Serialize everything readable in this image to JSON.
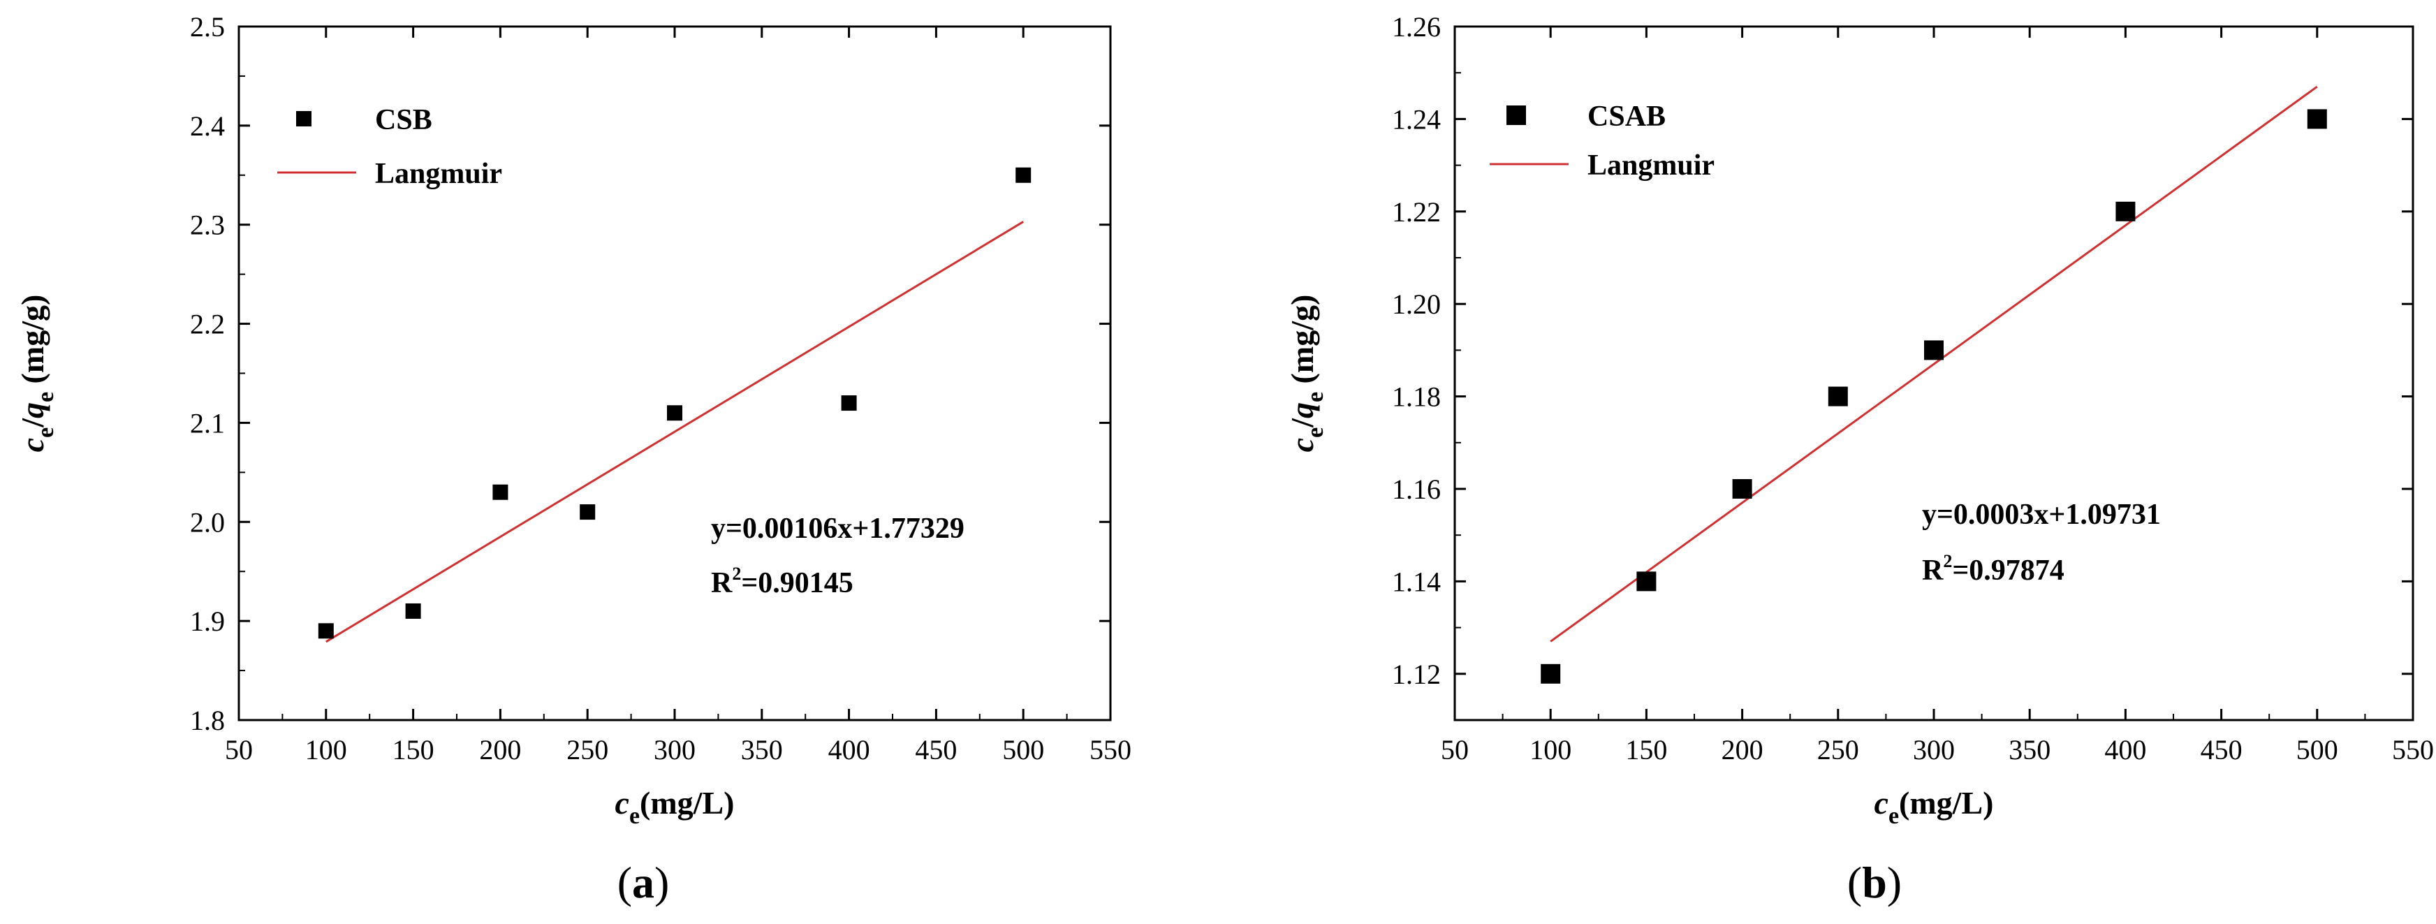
{
  "chart_data": [
    {
      "type": "scatter",
      "panel_label": {
        "open": "(",
        "letter": "a",
        "close": ")"
      },
      "xlabel": {
        "main": "c",
        "sub": "e",
        "rest": "(mg/L)"
      },
      "ylabel": {
        "c": "c",
        "e1": "e",
        "slash": "/",
        "q": "q",
        "e2": "e",
        "rest": " (mg/g)"
      },
      "xlim": [
        50,
        550
      ],
      "ylim": [
        1.8,
        2.5
      ],
      "xticks": [
        50,
        100,
        150,
        200,
        250,
        300,
        350,
        400,
        450,
        500,
        550
      ],
      "xtick_labels": [
        "50",
        "100",
        "150",
        "200",
        "250",
        "300",
        "350",
        "400",
        "450",
        "500",
        "550"
      ],
      "yticks": [
        1.8,
        1.9,
        2.0,
        2.1,
        2.2,
        2.3,
        2.4,
        2.5
      ],
      "ytick_labels": [
        "1.8",
        "1.9",
        "2.0",
        "2.1",
        "2.2",
        "2.3",
        "2.4",
        "2.5"
      ],
      "series": [
        {
          "name": "CSB",
          "kind": "points",
          "x": [
            100,
            150,
            200,
            250,
            300,
            400,
            500
          ],
          "y": [
            1.89,
            1.91,
            2.03,
            2.01,
            2.11,
            2.12,
            2.35
          ]
        },
        {
          "name": "Langmuir",
          "kind": "line",
          "x": [
            100,
            500
          ],
          "y": [
            1.879,
            2.303
          ]
        }
      ],
      "annotations": {
        "equation": "y=0.00106x+1.77329",
        "r2_prefix": "R",
        "r2_sup": "2",
        "r2_value": "=0.90145"
      },
      "legend_position": "top-left",
      "colors": {
        "points": "#000000",
        "line": "#d03030"
      }
    },
    {
      "type": "scatter",
      "panel_label": {
        "open": "(",
        "letter": "b",
        "close": ")"
      },
      "xlabel": {
        "main": "c",
        "sub": "e",
        "rest": "(mg/L)"
      },
      "ylabel": {
        "c": "c",
        "e1": "e",
        "slash": "/",
        "q": "q",
        "e2": "e",
        "rest": " (mg/g)"
      },
      "xlim": [
        50,
        550
      ],
      "ylim": [
        1.11,
        1.26
      ],
      "xticks": [
        50,
        100,
        150,
        200,
        250,
        300,
        350,
        400,
        450,
        500,
        550
      ],
      "xtick_labels": [
        "50",
        "100",
        "150",
        "200",
        "250",
        "300",
        "350",
        "400",
        "450",
        "500",
        "550"
      ],
      "yticks": [
        1.12,
        1.14,
        1.16,
        1.18,
        1.2,
        1.22,
        1.24,
        1.26
      ],
      "ytick_labels": [
        "1.12",
        "1.14",
        "1.16",
        "1.18",
        "1.20",
        "1.22",
        "1.24",
        "1.26"
      ],
      "series": [
        {
          "name": "CSAB",
          "kind": "points",
          "x": [
            100,
            150,
            200,
            250,
            300,
            400,
            500
          ],
          "y": [
            1.12,
            1.14,
            1.16,
            1.18,
            1.19,
            1.22,
            1.24
          ]
        },
        {
          "name": "Langmuir",
          "kind": "line",
          "x": [
            100,
            500
          ],
          "y": [
            1.127,
            1.247
          ]
        }
      ],
      "annotations": {
        "equation": "y=0.0003x+1.09731",
        "r2_prefix": "R",
        "r2_sup": "2",
        "r2_value": "=0.97874"
      },
      "legend_position": "top-left",
      "colors": {
        "points": "#000000",
        "line": "#d03030"
      }
    }
  ]
}
